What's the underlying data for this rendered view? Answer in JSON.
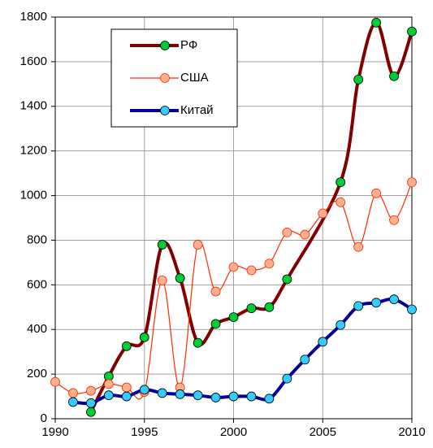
{
  "chart_data": {
    "type": "line",
    "series": [
      {
        "name": "РФ",
        "color": "#800000",
        "marker_color": "#00cc33",
        "x": [
          1992,
          1993,
          1994,
          1995,
          1996,
          1997,
          1998,
          1999,
          2000,
          2001,
          2002,
          2003,
          2006,
          2007,
          2008,
          2009,
          2010
        ],
        "values": [
          30,
          190,
          325,
          365,
          780,
          630,
          340,
          425,
          455,
          495,
          500,
          625,
          1060,
          1520,
          1775,
          1535,
          1735
        ]
      },
      {
        "name": "США",
        "color": "#ff2a00",
        "marker_color": "#ffb090",
        "x": [
          1990,
          1991,
          1992,
          1993,
          1994,
          1995,
          1996,
          1997,
          1998,
          1999,
          2000,
          2001,
          2002,
          2003,
          2004,
          2005,
          2006,
          2007,
          2008,
          2009,
          2010
        ],
        "values": [
          165,
          115,
          125,
          155,
          140,
          120,
          620,
          140,
          780,
          570,
          680,
          665,
          695,
          835,
          825,
          920,
          970,
          770,
          1010,
          890,
          1060
        ]
      },
      {
        "name": "Китай",
        "color": "#000099",
        "marker_color": "#33ccff",
        "x": [
          1991,
          1992,
          1993,
          1994,
          1995,
          1996,
          1997,
          1998,
          1999,
          2000,
          2001,
          2002,
          2003,
          2004,
          2005,
          2006,
          2007,
          2008,
          2009,
          2010
        ],
        "values": [
          75,
          70,
          105,
          100,
          130,
          115,
          110,
          105,
          95,
          100,
          100,
          90,
          180,
          265,
          345,
          420,
          505,
          520,
          535,
          490
        ]
      }
    ],
    "xlim": [
      1990,
      2010
    ],
    "xticks": [
      1990,
      1995,
      2000,
      2005,
      2010
    ],
    "ylim": [
      0,
      1800
    ],
    "yticks": [
      0,
      200,
      400,
      600,
      800,
      1000,
      1200,
      1400,
      1600,
      1800
    ],
    "grid": true,
    "legend": "upper left"
  }
}
